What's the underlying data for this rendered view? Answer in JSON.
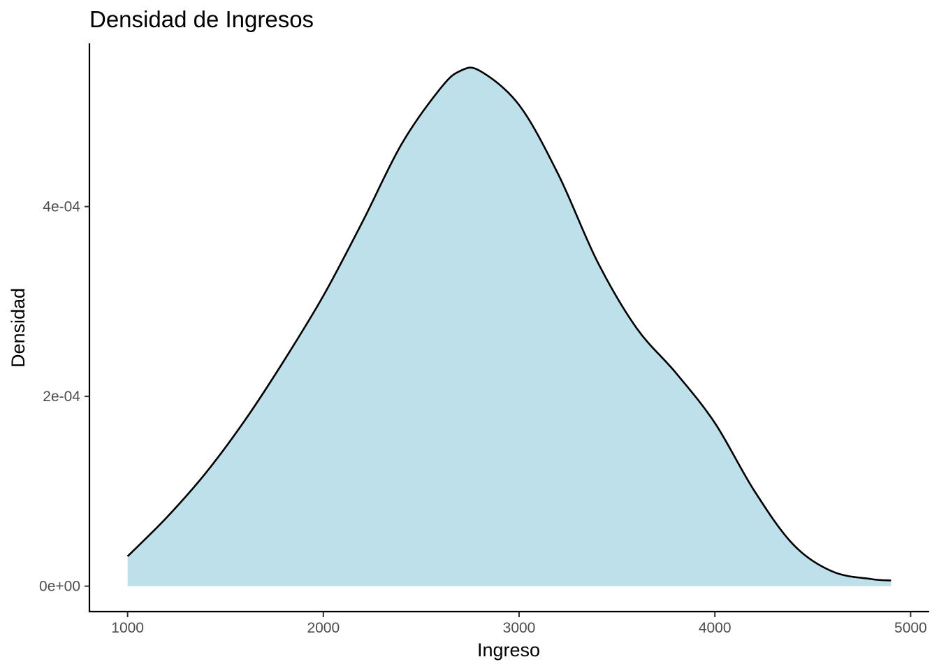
{
  "chart_data": {
    "type": "area",
    "title": "Densidad de Ingresos",
    "xlabel": "Ingreso",
    "ylabel": "Densidad",
    "xlim": [
      805,
      5095
    ],
    "ylim": [
      -2.75e-05,
      0.000572
    ],
    "x_ticks": [
      1000,
      2000,
      3000,
      4000,
      5000
    ],
    "x_tick_labels": [
      "1000",
      "2000",
      "3000",
      "4000",
      "5000"
    ],
    "y_ticks": [
      0,
      0.0002,
      0.0004
    ],
    "y_tick_labels": [
      "0e+00",
      "2e-04",
      "4e-04"
    ],
    "grid": false,
    "fill_color": "#add8e6",
    "fill_alpha": 0.8,
    "line_color": "#000000",
    "series": [
      {
        "x": [
          1000,
          1200,
          1400,
          1600,
          1800,
          2000,
          2200,
          2400,
          2600,
          2700,
          2800,
          3000,
          3200,
          3400,
          3600,
          3800,
          4000,
          4200,
          4400,
          4600,
          4800,
          4900
        ],
        "y": [
          3.15e-05,
          7.25e-05,
          0.0001195,
          0.000175,
          0.000238,
          0.000306,
          0.000384,
          0.000466,
          0.000525,
          0.000543,
          0.000543,
          0.000507,
          0.000434,
          0.000342,
          0.000272,
          0.000225,
          0.000172,
          0.000101,
          4.4e-05,
          1.55e-05,
          7.5e-06,
          6e-06
        ]
      }
    ]
  }
}
